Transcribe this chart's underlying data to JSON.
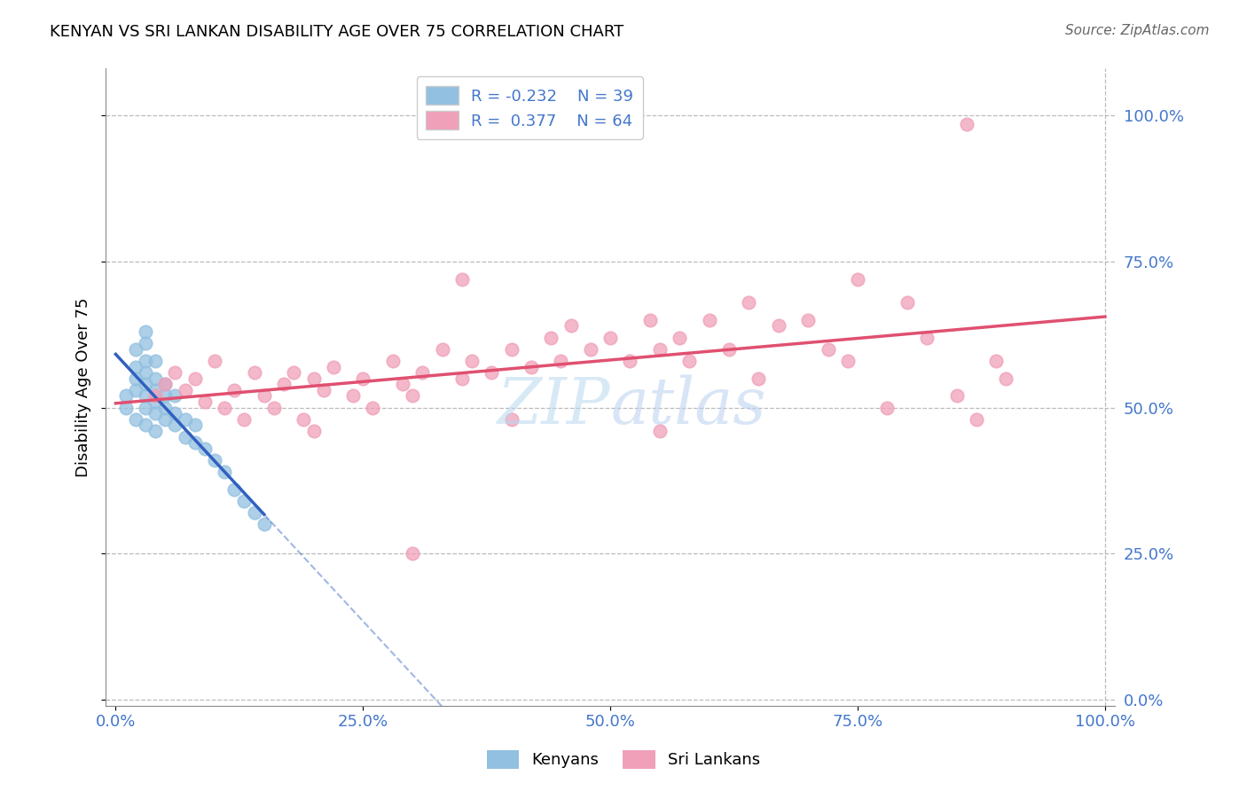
{
  "title": "KENYAN VS SRI LANKAN DISABILITY AGE OVER 75 CORRELATION CHART",
  "source": "Source: ZipAtlas.com",
  "ylabel": "Disability Age Over 75",
  "kenyan_color": "#92C0E0",
  "srilanka_color": "#F0A0B8",
  "kenyan_line_color": "#3060C0",
  "srilanka_line_color": "#E05070",
  "kenyan_R": -0.232,
  "kenyan_N": 39,
  "srilanka_R": 0.377,
  "srilanka_N": 64,
  "tick_color": "#4477CC",
  "ytick_values": [
    0.0,
    0.25,
    0.5,
    0.75,
    1.0
  ],
  "xtick_values": [
    0.0,
    0.25,
    0.5,
    0.75,
    1.0
  ],
  "kenyan_x": [
    0.01,
    0.01,
    0.02,
    0.02,
    0.02,
    0.02,
    0.02,
    0.03,
    0.03,
    0.03,
    0.03,
    0.03,
    0.03,
    0.03,
    0.03,
    0.04,
    0.04,
    0.04,
    0.04,
    0.04,
    0.04,
    0.05,
    0.05,
    0.05,
    0.05,
    0.06,
    0.06,
    0.06,
    0.07,
    0.07,
    0.08,
    0.08,
    0.09,
    0.1,
    0.11,
    0.12,
    0.13,
    0.14,
    0.15
  ],
  "kenyan_y": [
    0.5,
    0.52,
    0.48,
    0.53,
    0.55,
    0.57,
    0.6,
    0.47,
    0.5,
    0.52,
    0.54,
    0.56,
    0.58,
    0.61,
    0.63,
    0.46,
    0.49,
    0.51,
    0.53,
    0.55,
    0.58,
    0.48,
    0.5,
    0.52,
    0.54,
    0.47,
    0.49,
    0.52,
    0.45,
    0.48,
    0.44,
    0.47,
    0.43,
    0.41,
    0.39,
    0.36,
    0.34,
    0.32,
    0.3
  ],
  "srilanka_x": [
    0.04,
    0.05,
    0.06,
    0.07,
    0.08,
    0.09,
    0.1,
    0.11,
    0.12,
    0.13,
    0.14,
    0.15,
    0.16,
    0.17,
    0.18,
    0.19,
    0.2,
    0.21,
    0.22,
    0.24,
    0.25,
    0.26,
    0.28,
    0.29,
    0.3,
    0.31,
    0.33,
    0.35,
    0.36,
    0.38,
    0.4,
    0.42,
    0.44,
    0.45,
    0.46,
    0.48,
    0.5,
    0.52,
    0.54,
    0.55,
    0.57,
    0.58,
    0.6,
    0.62,
    0.64,
    0.65,
    0.67,
    0.7,
    0.72,
    0.74,
    0.75,
    0.78,
    0.8,
    0.82,
    0.85,
    0.87,
    0.89,
    0.9,
    0.55,
    0.4,
    0.3,
    0.2,
    0.86,
    0.35
  ],
  "srilanka_y": [
    0.52,
    0.54,
    0.56,
    0.53,
    0.55,
    0.51,
    0.58,
    0.5,
    0.53,
    0.48,
    0.56,
    0.52,
    0.5,
    0.54,
    0.56,
    0.48,
    0.55,
    0.53,
    0.57,
    0.52,
    0.55,
    0.5,
    0.58,
    0.54,
    0.52,
    0.56,
    0.6,
    0.55,
    0.58,
    0.56,
    0.6,
    0.57,
    0.62,
    0.58,
    0.64,
    0.6,
    0.62,
    0.58,
    0.65,
    0.6,
    0.62,
    0.58,
    0.65,
    0.6,
    0.68,
    0.55,
    0.64,
    0.65,
    0.6,
    0.58,
    0.72,
    0.5,
    0.68,
    0.62,
    0.52,
    0.48,
    0.58,
    0.55,
    0.46,
    0.48,
    0.25,
    0.46,
    0.985,
    0.72
  ]
}
